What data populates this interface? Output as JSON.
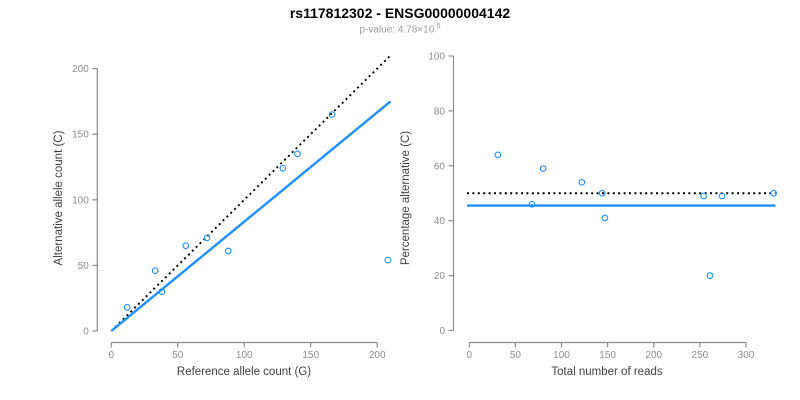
{
  "title": "rs117812302 - ENSG00000004142",
  "subtitle": {
    "text": "p-value: 4.78×10",
    "exponent": "-5"
  },
  "colors": {
    "accent_blue": "#1E90FF",
    "identity_line": "#000000",
    "axis": "#8C8C8C",
    "tick_label": "#8C8C8C",
    "axis_title": "#3F3F3F",
    "title": "#000000",
    "subtitle": "#9B9B9B"
  },
  "chart_data": [
    {
      "type": "scatter",
      "name": "allele-counts-scatter",
      "xlabel": "Reference allele count (G)",
      "ylabel": "Alternative allele count (C)",
      "xlim": [
        0,
        210
      ],
      "ylim": [
        0,
        210
      ],
      "x_ticks": [
        0,
        50,
        100,
        150,
        200
      ],
      "y_ticks": [
        0,
        50,
        100,
        150,
        200
      ],
      "grid": false,
      "legend": null,
      "points": [
        [
          12,
          18
        ],
        [
          33,
          46
        ],
        [
          38,
          30
        ],
        [
          56,
          65
        ],
        [
          72,
          71
        ],
        [
          88,
          61
        ],
        [
          129,
          124
        ],
        [
          140,
          135
        ],
        [
          166,
          165
        ],
        [
          208,
          54
        ]
      ],
      "lines": [
        {
          "name": "identity",
          "style": "dotted",
          "color": "#000000",
          "from": [
            0,
            0
          ],
          "to": [
            210,
            210
          ]
        },
        {
          "name": "fitted-ratio",
          "style": "solid",
          "color": "#1E90FF",
          "from": [
            0,
            0
          ],
          "to": [
            210,
            175
          ]
        }
      ]
    },
    {
      "type": "scatter",
      "name": "percentage-by-coverage-scatter",
      "xlabel": "Total number of reads",
      "ylabel": "Percentage alternative (C)",
      "xlim": [
        0,
        331
      ],
      "ylim": [
        0,
        100
      ],
      "x_ticks": [
        0,
        50,
        100,
        150,
        200,
        250,
        300
      ],
      "y_ticks": [
        0,
        20,
        40,
        60,
        80,
        100
      ],
      "grid": false,
      "legend": null,
      "points": [
        [
          31,
          64
        ],
        [
          68,
          46
        ],
        [
          80,
          59
        ],
        [
          122,
          54
        ],
        [
          144,
          50
        ],
        [
          147,
          41
        ],
        [
          254,
          49
        ],
        [
          261,
          20
        ],
        [
          274,
          49
        ],
        [
          330,
          50
        ]
      ],
      "lines": [
        {
          "name": "expected-50-percent",
          "style": "dotted",
          "color": "#000000",
          "y": 50
        },
        {
          "name": "observed-percentage",
          "style": "solid",
          "color": "#1E90FF",
          "y": 45.5
        }
      ]
    }
  ]
}
